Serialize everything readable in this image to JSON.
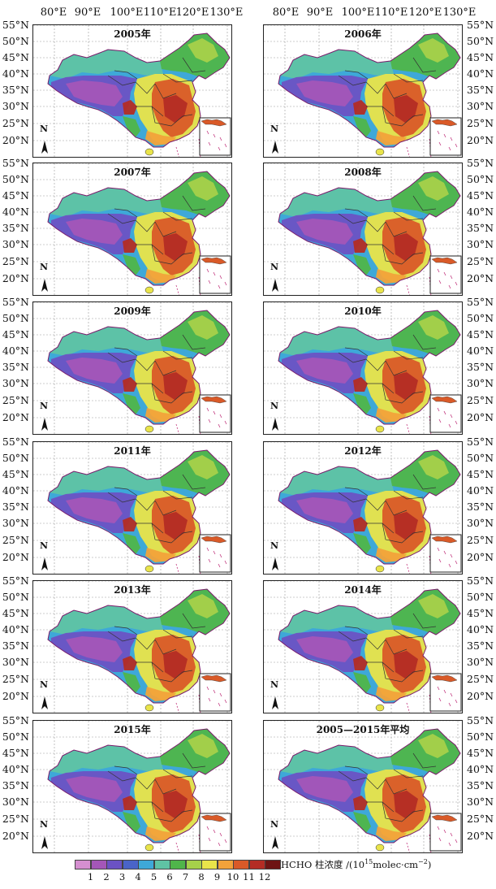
{
  "lon_labels": [
    "80°E",
    "90°E",
    "100°E",
    "110°E",
    "120°E",
    "130°E"
  ],
  "lat_labels": [
    "55°N",
    "50°N",
    "45°N",
    "40°N",
    "35°N",
    "30°N",
    "25°N",
    "20°N"
  ],
  "panels": [
    {
      "title": "2005年"
    },
    {
      "title": "2006年"
    },
    {
      "title": "2007年"
    },
    {
      "title": "2008年"
    },
    {
      "title": "2009年"
    },
    {
      "title": "2010年"
    },
    {
      "title": "2011年"
    },
    {
      "title": "2012年"
    },
    {
      "title": "2013年"
    },
    {
      "title": "2014年"
    },
    {
      "title": "2015年"
    },
    {
      "title": "2005—2015年平均"
    }
  ],
  "north_arrow": "N",
  "legend": {
    "title_main": "HCHO 柱浓度 /(10",
    "title_exp": "15",
    "title_unit": "molec·cm",
    "title_exp2": "−2",
    "title_end": ")",
    "ticks": [
      "1",
      "2",
      "3",
      "4",
      "5",
      "6",
      "7",
      "8",
      "9",
      "10",
      "11",
      "12"
    ],
    "colors": [
      "#d58fd0",
      "#a456b8",
      "#6b52c4",
      "#4a64c8",
      "#3ea8d8",
      "#5fc3a4",
      "#4fb54a",
      "#a6d14a",
      "#e9e44a",
      "#f2a23a",
      "#d95a28",
      "#b42c24",
      "#6e1414"
    ]
  }
}
